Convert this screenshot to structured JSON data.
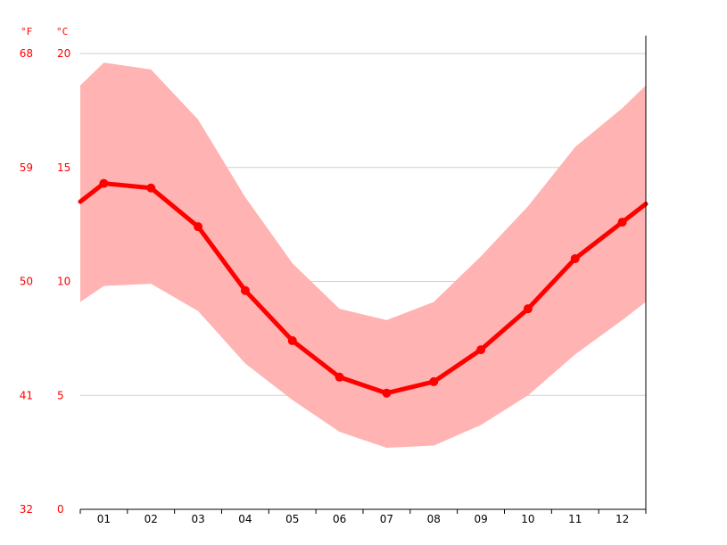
{
  "chart_data": {
    "type": "line",
    "categories": [
      "01",
      "02",
      "03",
      "04",
      "05",
      "06",
      "07",
      "08",
      "09",
      "10",
      "11",
      "12"
    ],
    "series": [
      {
        "role": "mean",
        "values": [
          14.3,
          14.1,
          12.4,
          9.6,
          7.4,
          5.8,
          5.1,
          5.6,
          7.0,
          8.8,
          11.0,
          12.6
        ],
        "color": "#ff0000"
      },
      {
        "role": "band-max",
        "values": [
          19.6,
          19.3,
          17.1,
          13.7,
          10.8,
          8.8,
          8.3,
          9.1,
          11.1,
          13.3,
          15.9,
          17.6
        ],
        "color": "#ffb3b3"
      },
      {
        "role": "band-min",
        "values": [
          9.8,
          9.9,
          8.7,
          6.4,
          4.8,
          3.4,
          2.7,
          2.8,
          3.7,
          5.0,
          6.8,
          8.3
        ],
        "color": "#ffb3b3"
      }
    ],
    "edge_values": {
      "start_mean": 13.5,
      "end_mean": 13.4,
      "start_max": 18.6,
      "end_max": 18.6,
      "start_min": 9.1,
      "end_min": 9.1
    },
    "ylim": [
      0,
      20
    ],
    "y_ticks_c": [
      0,
      5,
      10,
      15,
      20
    ],
    "y_ticks_f": [
      32,
      41,
      50,
      59,
      68
    ],
    "unit_f": "°F",
    "unit_c": "°C",
    "grid": true
  }
}
